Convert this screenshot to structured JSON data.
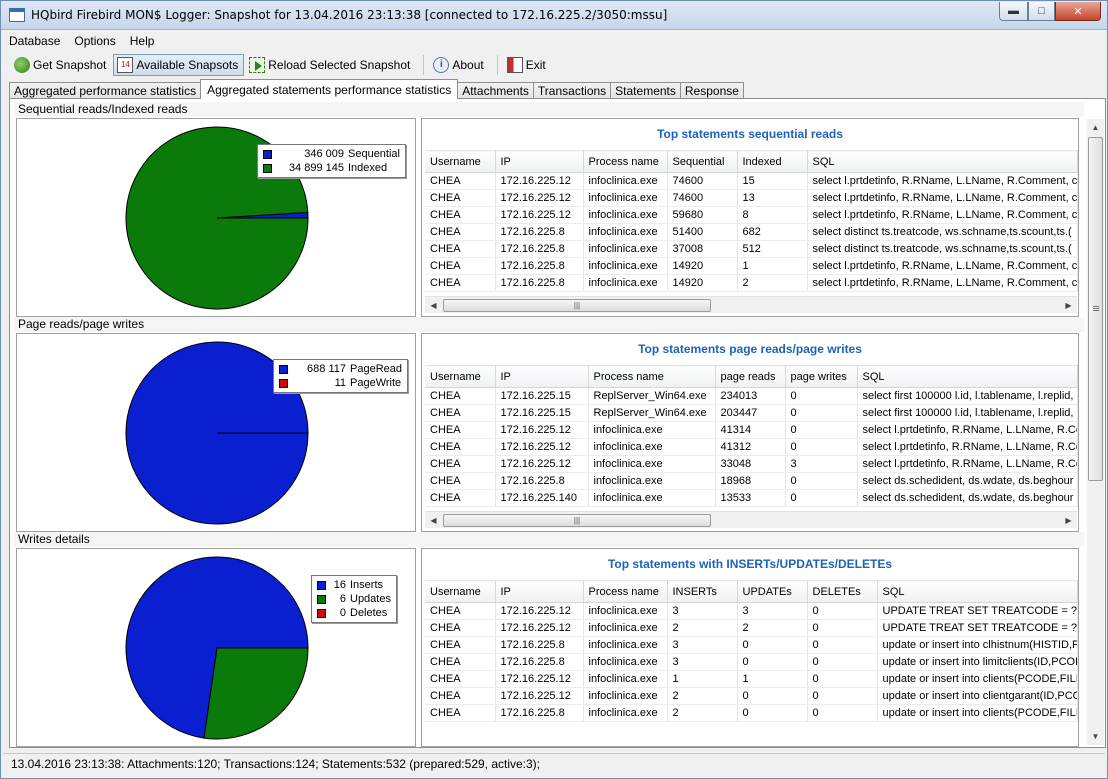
{
  "window": {
    "title": "HQbird Firebird MON$ Logger: Snapshot for 13.04.2016 23:13:38 [connected to 172.16.225.2/3050:mssu]"
  },
  "menu": [
    "Database",
    "Options",
    "Help"
  ],
  "toolbar": {
    "get_snapshot": "Get Snapshot",
    "available_snapshots": "Available Snapsots",
    "reload_selected": "Reload Selected Snapshot",
    "about": "About",
    "exit": "Exit"
  },
  "tabs": [
    "Aggregated performance statistics",
    "Aggregated statements performance statistics",
    "Attachments",
    "Transactions",
    "Statements",
    "Response"
  ],
  "sections": [
    {
      "caption": "Sequential reads/Indexed reads",
      "legend": [
        {
          "value": "346 009",
          "label": "Sequential",
          "color": "#0a1fd0"
        },
        {
          "value": "34 899 145",
          "label": "Indexed",
          "color": "#0a7a0a"
        }
      ],
      "grid_title": "Top statements sequential reads",
      "columns": [
        "Username",
        "IP",
        "Process name",
        "Sequential",
        "Indexed",
        "SQL"
      ],
      "rows": [
        [
          "CHEA",
          "172.16.225.12",
          "infoclinica.exe",
          "74600",
          "15",
          "select l.prtdetinfo, R.RName, L.LName, R.Comment, ca"
        ],
        [
          "CHEA",
          "172.16.225.12",
          "infoclinica.exe",
          "74600",
          "13",
          "select l.prtdetinfo, R.RName, L.LName, R.Comment, ca"
        ],
        [
          "CHEA",
          "172.16.225.12",
          "infoclinica.exe",
          "59680",
          "8",
          "select l.prtdetinfo, R.RName, L.LName, R.Comment, ca"
        ],
        [
          "CHEA",
          "172.16.225.8",
          "infoclinica.exe",
          "51400",
          "682",
          "select distinct ts.treatcode,  ws.schname,ts.scount,ts.("
        ],
        [
          "CHEA",
          "172.16.225.8",
          "infoclinica.exe",
          "37008",
          "512",
          "select distinct ts.treatcode,  ws.schname,ts.scount,ts.("
        ],
        [
          "CHEA",
          "172.16.225.8",
          "infoclinica.exe",
          "14920",
          "1",
          "select l.prtdetinfo, R.RName, L.LName, R.Comment, ca"
        ],
        [
          "CHEA",
          "172.16.225.8",
          "infoclinica.exe",
          "14920",
          "2",
          "select l.prtdetinfo, R.RName, L.LName, R.Comment, ca"
        ]
      ]
    },
    {
      "caption": "Page reads/page writes",
      "legend": [
        {
          "value": "688 117",
          "label": "PageRead",
          "color": "#0a1fd0"
        },
        {
          "value": "11",
          "label": "PageWrite",
          "color": "#d00a0a"
        }
      ],
      "grid_title": "Top statements page reads/page writes",
      "columns": [
        "Username",
        "IP",
        "Process name",
        "page reads",
        "page writes",
        "SQL"
      ],
      "rows": [
        [
          "CHEA",
          "172.16.225.15",
          "ReplServer_Win64.exe",
          "234013",
          "0",
          "select first 100000 l.id, l.tablename, l.replid,"
        ],
        [
          "CHEA",
          "172.16.225.15",
          "ReplServer_Win64.exe",
          "203447",
          "0",
          "select first 100000 l.id, l.tablename, l.replid,"
        ],
        [
          "CHEA",
          "172.16.225.12",
          "infoclinica.exe",
          "41314",
          "0",
          "select l.prtdetinfo, R.RName, L.LName, R.Co"
        ],
        [
          "CHEA",
          "172.16.225.12",
          "infoclinica.exe",
          "41312",
          "0",
          "select l.prtdetinfo, R.RName, L.LName, R.Co"
        ],
        [
          "CHEA",
          "172.16.225.12",
          "infoclinica.exe",
          "33048",
          "3",
          "select l.prtdetinfo, R.RName, L.LName, R.Co"
        ],
        [
          "CHEA",
          "172.16.225.8",
          "infoclinica.exe",
          "18968",
          "0",
          "select ds.schedident, ds.wdate, ds.beghour"
        ],
        [
          "CHEA",
          "172.16.225.140",
          "infoclinica.exe",
          "13533",
          "0",
          "select ds.schedident, ds.wdate, ds.beghour"
        ]
      ]
    },
    {
      "caption": "Writes details",
      "legend": [
        {
          "value": "16",
          "label": "Inserts",
          "color": "#0a1fd0"
        },
        {
          "value": "6",
          "label": "Updates",
          "color": "#0a7a0a"
        },
        {
          "value": "0",
          "label": "Deletes",
          "color": "#d00a0a"
        }
      ],
      "grid_title": "Top statements with INSERTs/UPDATEs/DELETEs",
      "columns": [
        "Username",
        "IP",
        "Process name",
        "INSERTs",
        "UPDATEs",
        "DELETEs",
        "SQL"
      ],
      "rows": [
        [
          "CHEA",
          "172.16.225.12",
          "infoclinica.exe",
          "3",
          "3",
          "0",
          "UPDATE TREAT SET TREATCODE = ?,PC"
        ],
        [
          "CHEA",
          "172.16.225.12",
          "infoclinica.exe",
          "2",
          "2",
          "0",
          "UPDATE TREAT SET TREATCODE = ?,PC"
        ],
        [
          "CHEA",
          "172.16.225.8",
          "infoclinica.exe",
          "3",
          "0",
          "0",
          "update or insert into clhistnum(HISTID,P"
        ],
        [
          "CHEA",
          "172.16.225.8",
          "infoclinica.exe",
          "3",
          "0",
          "0",
          "update or insert into limitclients(ID,PCOD"
        ],
        [
          "CHEA",
          "172.16.225.12",
          "infoclinica.exe",
          "1",
          "1",
          "0",
          "update or insert into clients(PCODE,FILIA"
        ],
        [
          "CHEA",
          "172.16.225.12",
          "infoclinica.exe",
          "2",
          "0",
          "0",
          "update or insert into clientgarant(ID,PCO"
        ],
        [
          "CHEA",
          "172.16.225.8",
          "infoclinica.exe",
          "2",
          "0",
          "0",
          "update or insert into clients(PCODE,FILIA"
        ]
      ]
    }
  ],
  "chart_data": [
    {
      "type": "pie",
      "labels": [
        "Sequential",
        "Indexed"
      ],
      "values": [
        346009,
        34899145
      ]
    },
    {
      "type": "pie",
      "labels": [
        "PageRead",
        "PageWrite"
      ],
      "values": [
        688117,
        11
      ]
    },
    {
      "type": "pie",
      "labels": [
        "Inserts",
        "Updates",
        "Deletes"
      ],
      "values": [
        16,
        6,
        0
      ]
    }
  ],
  "statusbar": "13.04.2016 23:13:38: Attachments:120; Transactions:124; Statements:532 (prepared:529, active:3);"
}
